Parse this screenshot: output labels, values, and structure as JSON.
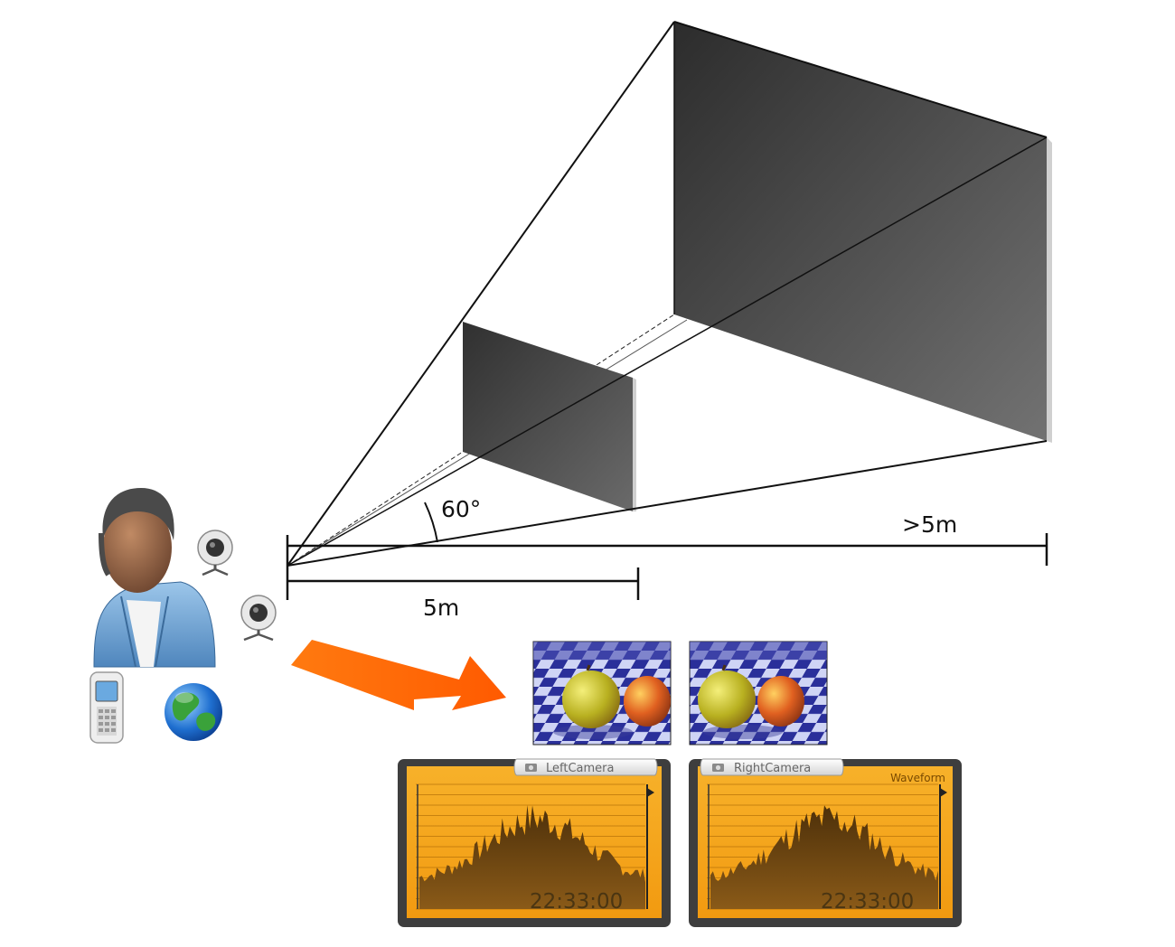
{
  "labels": {
    "angle": "60°",
    "near_distance": "5m",
    "far_distance": ">5m"
  },
  "icons": {
    "user": "user-avatar-icon",
    "webcam": "webcam-icon",
    "phone": "mobile-phone-icon",
    "globe": "globe-icon",
    "arrow": "arrow-icon",
    "camera": "camera-icon"
  },
  "camera_views": [
    {
      "name": "left-camera-image"
    },
    {
      "name": "right-camera-image"
    }
  ],
  "panels": [
    {
      "tab_label": "LeftCamera",
      "time": "22:33:00",
      "mode_label": ""
    },
    {
      "tab_label": "RightCamera",
      "time": "22:33:00",
      "mode_label": "Waveform"
    }
  ],
  "colors": {
    "arrow": "#ff6a00",
    "panel_fill": "#f5a417",
    "panel_frame": "#3e3e3e",
    "waveform": "#6b4510",
    "screen_dark": "#2f2f2f",
    "screen_light": "#707070",
    "checker_blue": "#2a2f9a"
  }
}
